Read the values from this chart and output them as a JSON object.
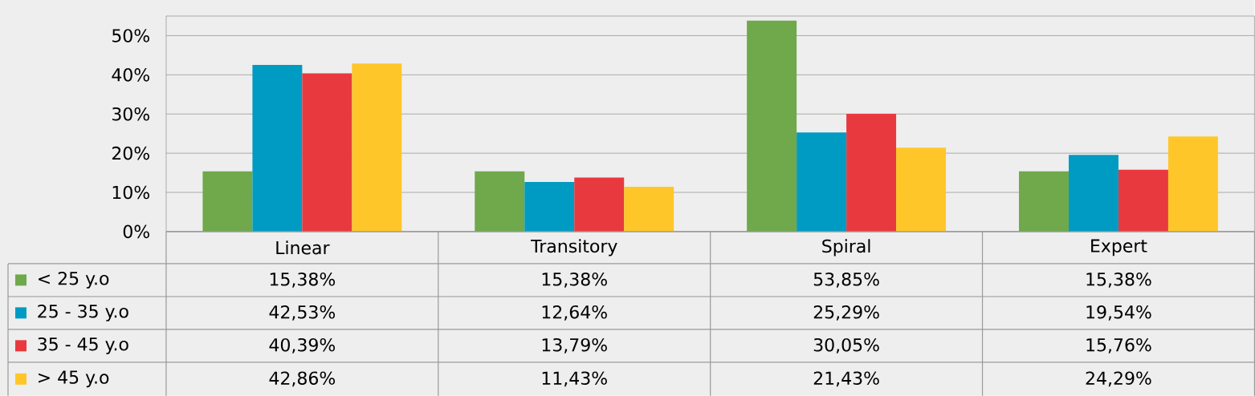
{
  "chart_data": {
    "type": "bar",
    "categories": [
      "Linear",
      "Transitory",
      "Spiral",
      "Expert"
    ],
    "series": [
      {
        "name": "< 25 y.o",
        "color": "#70a84c",
        "values": [
          15.38,
          15.38,
          53.85,
          15.38
        ],
        "value_labels": [
          "15,38%",
          "15,38%",
          "53,85%",
          "15,38%"
        ]
      },
      {
        "name": "25 - 35 y.o",
        "color": "#009bc2",
        "values": [
          42.53,
          12.64,
          25.29,
          19.54
        ],
        "value_labels": [
          "42,53%",
          "12,64%",
          "25,29%",
          "19,54%"
        ]
      },
      {
        "name": "35 - 45 y.o",
        "color": "#e8393f",
        "values": [
          40.39,
          13.79,
          30.05,
          15.76
        ],
        "value_labels": [
          "40,39%",
          "13,79%",
          "30,05%",
          "15,76%"
        ]
      },
      {
        "name": "> 45 y.o",
        "color": "#ffc629",
        "values": [
          42.86,
          11.43,
          21.43,
          24.29
        ],
        "value_labels": [
          "42,86%",
          "11,43%",
          "21,43%",
          "24,29%"
        ]
      }
    ],
    "ylim": [
      0,
      55
    ],
    "yticks": [
      {
        "value": 0,
        "label": "0%"
      },
      {
        "value": 10,
        "label": "10%"
      },
      {
        "value": 20,
        "label": "20%"
      },
      {
        "value": 30,
        "label": "30%"
      },
      {
        "value": 40,
        "label": "40%"
      },
      {
        "value": 50,
        "label": "50%"
      }
    ],
    "grid": "y",
    "legend": "bottom left"
  }
}
